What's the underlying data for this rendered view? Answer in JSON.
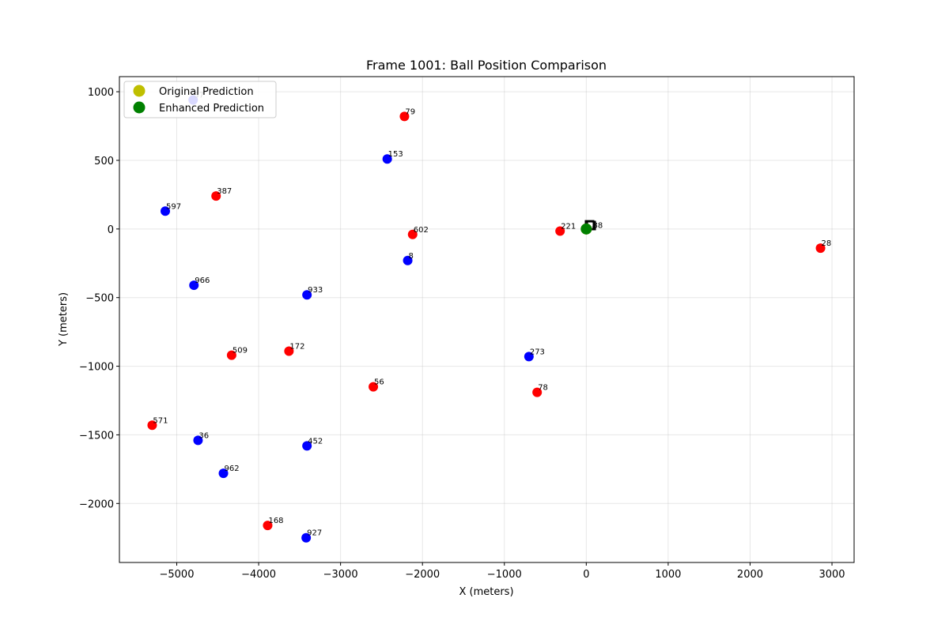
{
  "chart_data": {
    "type": "scatter",
    "title": "Frame 1001: Ball Position Comparison",
    "xlabel": "X (meters)",
    "ylabel": "Y (meters)",
    "xlim": [
      -5700,
      3270
    ],
    "ylim": [
      -2430,
      1110
    ],
    "xticks": [
      -5000,
      -4000,
      -3000,
      -2000,
      -1000,
      0,
      1000,
      2000,
      3000
    ],
    "yticks": [
      -2000,
      -1500,
      -1000,
      -500,
      0,
      500,
      1000
    ],
    "grid": true,
    "legend_placement": "upper-left",
    "colors": {
      "team_red": "#ff0000",
      "team_blue": "#0000ff",
      "original_prediction": "#bfbf00",
      "enhanced_prediction": "#008000",
      "ball_marker": "#000000"
    },
    "legend": [
      {
        "label": "Original Prediction",
        "color": "#bfbf00"
      },
      {
        "label": "Enhanced Prediction",
        "color": "#008000"
      }
    ],
    "series": [
      {
        "team": "red",
        "points": [
          {
            "x": -2220,
            "y": 820,
            "label": "79"
          },
          {
            "x": -4520,
            "y": 240,
            "label": "387"
          },
          {
            "x": -2120,
            "y": -40,
            "label": "602"
          },
          {
            "x": -4330,
            "y": -920,
            "label": "509"
          },
          {
            "x": -3630,
            "y": -890,
            "label": "172"
          },
          {
            "x": -2600,
            "y": -1150,
            "label": "56"
          },
          {
            "x": -5300,
            "y": -1430,
            "label": "571"
          },
          {
            "x": -3890,
            "y": -2160,
            "label": "168"
          },
          {
            "x": -320,
            "y": -15,
            "label": "221"
          },
          {
            "x": -600,
            "y": -1190,
            "label": "78"
          },
          {
            "x": 2860,
            "y": -140,
            "label": "28"
          }
        ]
      },
      {
        "team": "blue",
        "points": [
          {
            "x": -4800,
            "y": 940,
            "label": "37"
          },
          {
            "x": -2430,
            "y": 510,
            "label": "153"
          },
          {
            "x": -5140,
            "y": 130,
            "label": "597"
          },
          {
            "x": -2180,
            "y": -230,
            "label": "8"
          },
          {
            "x": -4790,
            "y": -410,
            "label": "966"
          },
          {
            "x": -3410,
            "y": -480,
            "label": "933"
          },
          {
            "x": -700,
            "y": -930,
            "label": "273"
          },
          {
            "x": -4740,
            "y": -1540,
            "label": "36"
          },
          {
            "x": -3410,
            "y": -1580,
            "label": "452"
          },
          {
            "x": -4430,
            "y": -1780,
            "label": "962"
          },
          {
            "x": -3420,
            "y": -2250,
            "label": "927"
          }
        ]
      }
    ],
    "predictions": [
      {
        "name": "Original Prediction",
        "x": 0,
        "y": 0
      },
      {
        "name": "Enhanced Prediction",
        "x": 0,
        "y": 0
      }
    ],
    "ball_markers": [
      {
        "x": 40,
        "y": 30,
        "label": "1"
      },
      {
        "x": 60,
        "y": 25,
        "label": "88"
      }
    ]
  }
}
